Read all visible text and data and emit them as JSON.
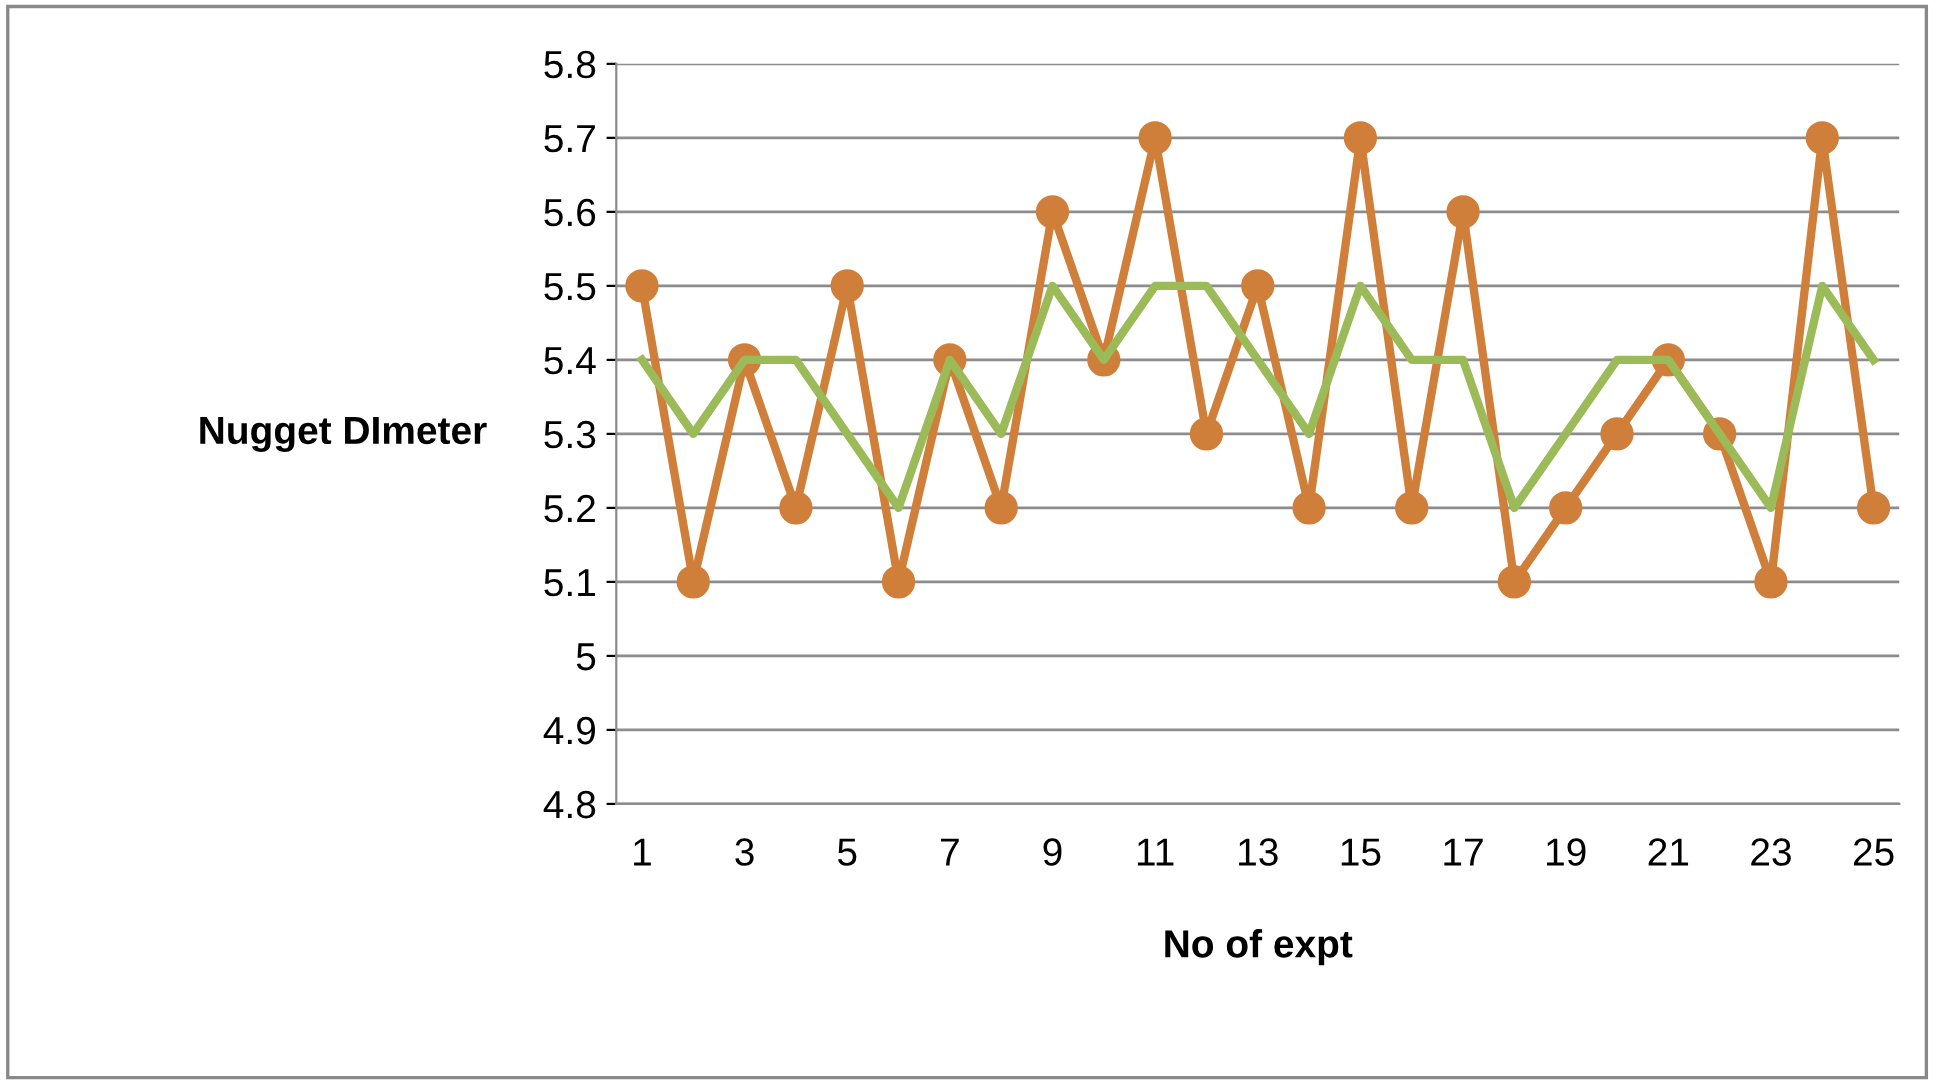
{
  "chart_data": {
    "type": "line",
    "ylabel": "Nugget DImeter",
    "xlabel": "No of expt",
    "categories": [
      "1",
      null,
      "3",
      null,
      "5",
      null,
      "7",
      null,
      "9",
      null,
      "11",
      null,
      "13",
      null,
      "15",
      null,
      "17",
      null,
      "19",
      null,
      "21",
      null,
      "23",
      null,
      "25"
    ],
    "series": [
      {
        "color": "#d07f3a",
        "marker": "circle",
        "values": [
          5.5,
          5.1,
          5.4,
          5.2,
          5.5,
          5.1,
          5.4,
          5.2,
          5.6,
          5.4,
          5.7,
          5.3,
          5.5,
          5.2,
          5.7,
          5.2,
          5.6,
          5.1,
          5.2,
          5.3,
          5.4,
          5.3,
          5.1,
          5.7,
          5.2
        ]
      },
      {
        "color": "#9bbb59",
        "marker": "none",
        "values": [
          5.4,
          5.3,
          5.4,
          5.4,
          5.3,
          5.2,
          5.4,
          5.3,
          5.5,
          5.4,
          5.5,
          5.5,
          5.4,
          5.3,
          5.5,
          5.4,
          5.4,
          5.2,
          5.3,
          5.4,
          5.4,
          5.3,
          5.2,
          5.5,
          5.4
        ]
      }
    ],
    "ylim": [
      4.8,
      5.8
    ],
    "yticks": [
      4.8,
      4.9,
      5,
      5.1,
      5.2,
      5.3,
      5.4,
      5.5,
      5.6,
      5.7,
      5.8
    ],
    "grid": "y",
    "legend": false,
    "line_style": "solid"
  }
}
